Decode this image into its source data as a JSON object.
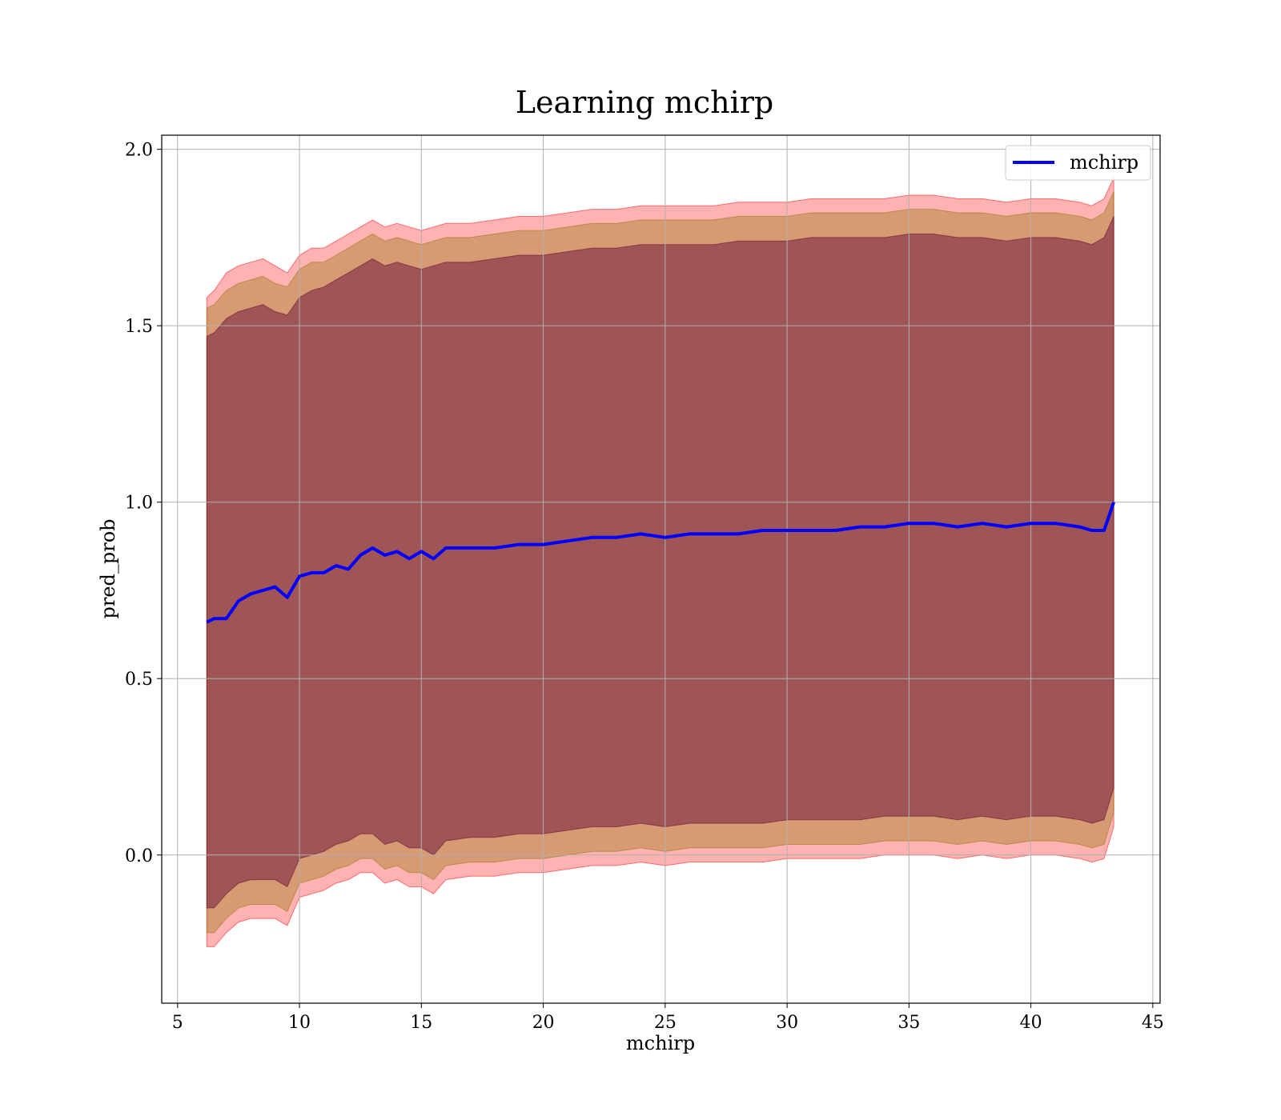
{
  "chart_data": {
    "type": "line",
    "title": "Learning mchirp",
    "xlabel": "mchirp",
    "ylabel": "pred_prob",
    "xlim": [
      4.35,
      45.3
    ],
    "ylim": [
      -0.42,
      2.04
    ],
    "xticks": [
      5,
      10,
      15,
      20,
      25,
      30,
      35,
      40,
      45
    ],
    "yticks": [
      0.0,
      0.5,
      1.0,
      1.5,
      2.0
    ],
    "xtick_labels": [
      "5",
      "10",
      "15",
      "20",
      "25",
      "30",
      "35",
      "40",
      "45"
    ],
    "ytick_labels": [
      "0.0",
      "0.5",
      "1.0",
      "1.5",
      "2.0"
    ],
    "grid": true,
    "legend_position": "top-right",
    "colors": {
      "line": "#0000ff",
      "band_outer": "#ff0000",
      "band_middle": "#8c7000",
      "band_inner": "#5a0030"
    },
    "series": [
      {
        "name": "mchirp",
        "x": [
          6.2,
          6.5,
          7.0,
          7.5,
          8.0,
          8.5,
          9.0,
          9.5,
          10.0,
          10.5,
          11.0,
          11.5,
          12.0,
          12.5,
          13.0,
          13.5,
          14.0,
          14.5,
          15.0,
          15.5,
          16.0,
          17.0,
          18.0,
          19.0,
          20.0,
          21.0,
          22.0,
          23.0,
          24.0,
          25.0,
          26.0,
          27.0,
          28.0,
          29.0,
          30.0,
          31.0,
          32.0,
          33.0,
          34.0,
          35.0,
          36.0,
          37.0,
          38.0,
          39.0,
          40.0,
          41.0,
          42.0,
          42.5,
          43.0,
          43.4
        ],
        "y": [
          0.66,
          0.67,
          0.67,
          0.72,
          0.74,
          0.75,
          0.76,
          0.73,
          0.79,
          0.8,
          0.8,
          0.82,
          0.81,
          0.85,
          0.87,
          0.85,
          0.86,
          0.84,
          0.86,
          0.84,
          0.87,
          0.87,
          0.87,
          0.88,
          0.88,
          0.89,
          0.9,
          0.9,
          0.91,
          0.9,
          0.91,
          0.91,
          0.91,
          0.92,
          0.92,
          0.92,
          0.92,
          0.93,
          0.93,
          0.94,
          0.94,
          0.93,
          0.94,
          0.93,
          0.94,
          0.94,
          0.93,
          0.92,
          0.92,
          1.0
        ]
      }
    ],
    "bands": [
      {
        "name": "outer",
        "upper": [
          1.58,
          1.6,
          1.65,
          1.67,
          1.68,
          1.69,
          1.67,
          1.65,
          1.7,
          1.72,
          1.72,
          1.74,
          1.76,
          1.78,
          1.8,
          1.78,
          1.79,
          1.78,
          1.77,
          1.78,
          1.79,
          1.79,
          1.8,
          1.81,
          1.81,
          1.82,
          1.83,
          1.83,
          1.84,
          1.84,
          1.84,
          1.84,
          1.85,
          1.85,
          1.85,
          1.86,
          1.86,
          1.86,
          1.86,
          1.87,
          1.87,
          1.86,
          1.86,
          1.85,
          1.86,
          1.86,
          1.85,
          1.84,
          1.86,
          1.92
        ],
        "lower": [
          -0.26,
          -0.26,
          -0.22,
          -0.19,
          -0.18,
          -0.18,
          -0.18,
          -0.2,
          -0.12,
          -0.11,
          -0.1,
          -0.08,
          -0.07,
          -0.05,
          -0.05,
          -0.08,
          -0.07,
          -0.09,
          -0.09,
          -0.11,
          -0.07,
          -0.06,
          -0.06,
          -0.05,
          -0.05,
          -0.04,
          -0.03,
          -0.03,
          -0.02,
          -0.03,
          -0.02,
          -0.02,
          -0.02,
          -0.02,
          -0.01,
          -0.01,
          -0.01,
          -0.01,
          0.0,
          0.0,
          0.0,
          -0.01,
          0.0,
          -0.01,
          0.0,
          0.0,
          -0.01,
          -0.02,
          -0.01,
          0.08
        ]
      },
      {
        "name": "middle",
        "upper": [
          1.55,
          1.56,
          1.6,
          1.62,
          1.63,
          1.64,
          1.62,
          1.61,
          1.66,
          1.68,
          1.68,
          1.7,
          1.72,
          1.74,
          1.76,
          1.74,
          1.75,
          1.74,
          1.73,
          1.74,
          1.75,
          1.75,
          1.76,
          1.77,
          1.77,
          1.78,
          1.79,
          1.79,
          1.8,
          1.8,
          1.8,
          1.8,
          1.81,
          1.81,
          1.81,
          1.82,
          1.82,
          1.82,
          1.82,
          1.83,
          1.83,
          1.82,
          1.82,
          1.81,
          1.82,
          1.82,
          1.81,
          1.8,
          1.82,
          1.88
        ],
        "lower": [
          -0.22,
          -0.22,
          -0.18,
          -0.15,
          -0.14,
          -0.14,
          -0.14,
          -0.16,
          -0.08,
          -0.07,
          -0.06,
          -0.04,
          -0.03,
          -0.01,
          -0.01,
          -0.04,
          -0.03,
          -0.05,
          -0.05,
          -0.07,
          -0.03,
          -0.02,
          -0.02,
          -0.01,
          -0.01,
          0.0,
          0.01,
          0.01,
          0.02,
          0.01,
          0.02,
          0.02,
          0.02,
          0.02,
          0.03,
          0.03,
          0.03,
          0.03,
          0.04,
          0.04,
          0.04,
          0.03,
          0.04,
          0.03,
          0.04,
          0.04,
          0.03,
          0.02,
          0.03,
          0.12
        ]
      },
      {
        "name": "inner",
        "upper": [
          1.47,
          1.48,
          1.52,
          1.54,
          1.55,
          1.56,
          1.54,
          1.53,
          1.58,
          1.6,
          1.61,
          1.63,
          1.65,
          1.67,
          1.69,
          1.67,
          1.68,
          1.67,
          1.66,
          1.67,
          1.68,
          1.68,
          1.69,
          1.7,
          1.7,
          1.71,
          1.72,
          1.72,
          1.73,
          1.73,
          1.73,
          1.73,
          1.74,
          1.74,
          1.74,
          1.75,
          1.75,
          1.75,
          1.75,
          1.76,
          1.76,
          1.75,
          1.75,
          1.74,
          1.75,
          1.75,
          1.74,
          1.73,
          1.75,
          1.81
        ],
        "lower": [
          -0.15,
          -0.15,
          -0.11,
          -0.08,
          -0.07,
          -0.07,
          -0.07,
          -0.09,
          -0.01,
          0.0,
          0.01,
          0.03,
          0.04,
          0.06,
          0.06,
          0.03,
          0.04,
          0.02,
          0.02,
          0.0,
          0.04,
          0.05,
          0.05,
          0.06,
          0.06,
          0.07,
          0.08,
          0.08,
          0.09,
          0.08,
          0.09,
          0.09,
          0.09,
          0.09,
          0.1,
          0.1,
          0.1,
          0.1,
          0.11,
          0.11,
          0.11,
          0.1,
          0.11,
          0.1,
          0.11,
          0.11,
          0.1,
          0.09,
          0.1,
          0.19
        ]
      }
    ]
  }
}
